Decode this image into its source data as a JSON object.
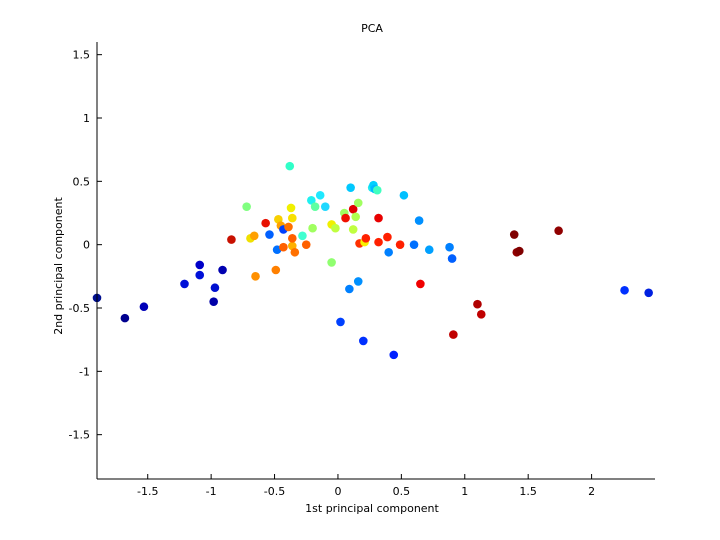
{
  "chart_data": {
    "type": "scatter",
    "title": "PCA",
    "xlabel": "1st principal component",
    "ylabel": "2nd principal component",
    "xlim": [
      -1.9,
      2.5
    ],
    "ylim": [
      -1.85,
      1.6
    ],
    "xticks": [
      -1.5,
      -1,
      -0.5,
      0,
      0.5,
      1,
      1.5,
      2
    ],
    "xtick_labels": [
      "-1.5",
      "-1",
      "-0.5",
      "0",
      "0.5",
      "1",
      "1.5",
      "2"
    ],
    "yticks": [
      1.5,
      1,
      0.5,
      0,
      -0.5,
      -1,
      -1.5
    ],
    "ytick_labels": [
      "1.5",
      "1",
      "0.5",
      "0",
      "-0.5",
      "-1",
      "-1.5"
    ],
    "grid": false,
    "colormap": "jet",
    "points": [
      {
        "x": -1.9,
        "y": -0.42,
        "c": "#000f8f"
      },
      {
        "x": -1.68,
        "y": -0.58,
        "c": "#00008f"
      },
      {
        "x": -1.53,
        "y": -0.49,
        "c": "#0000b8"
      },
      {
        "x": -1.21,
        "y": -0.31,
        "c": "#0010d8"
      },
      {
        "x": -1.09,
        "y": -0.16,
        "c": "#0000c8"
      },
      {
        "x": -1.09,
        "y": -0.24,
        "c": "#0010d8"
      },
      {
        "x": -0.97,
        "y": -0.34,
        "c": "#0010d0"
      },
      {
        "x": -0.98,
        "y": -0.45,
        "c": "#0000a8"
      },
      {
        "x": -0.91,
        "y": -0.2,
        "c": "#0000b0"
      },
      {
        "x": -0.84,
        "y": 0.04,
        "c": "#c81000"
      },
      {
        "x": -0.72,
        "y": 0.3,
        "c": "#80ff80"
      },
      {
        "x": -0.69,
        "y": 0.05,
        "c": "#f0e000"
      },
      {
        "x": -0.66,
        "y": 0.07,
        "c": "#ffa000"
      },
      {
        "x": -0.65,
        "y": -0.25,
        "c": "#ff9000"
      },
      {
        "x": -0.57,
        "y": 0.17,
        "c": "#e81000"
      },
      {
        "x": -0.54,
        "y": 0.08,
        "c": "#0060ff"
      },
      {
        "x": -0.49,
        "y": -0.2,
        "c": "#ff8000"
      },
      {
        "x": -0.48,
        "y": -0.04,
        "c": "#0070ff"
      },
      {
        "x": -0.47,
        "y": 0.2,
        "c": "#f8d000"
      },
      {
        "x": -0.45,
        "y": 0.15,
        "c": "#ffa000"
      },
      {
        "x": -0.43,
        "y": 0.12,
        "c": "#0040ff"
      },
      {
        "x": -0.43,
        "y": -0.02,
        "c": "#ff6000"
      },
      {
        "x": -0.39,
        "y": 0.14,
        "c": "#ff7000"
      },
      {
        "x": -0.38,
        "y": 0.62,
        "c": "#30ffc8"
      },
      {
        "x": -0.37,
        "y": 0.29,
        "c": "#f0f000"
      },
      {
        "x": -0.36,
        "y": 0.21,
        "c": "#f8e000"
      },
      {
        "x": -0.36,
        "y": -0.01,
        "c": "#ffb000"
      },
      {
        "x": -0.36,
        "y": 0.05,
        "c": "#ff6000"
      },
      {
        "x": -0.34,
        "y": -0.06,
        "c": "#ff7000"
      },
      {
        "x": -0.28,
        "y": 0.07,
        "c": "#40ffd0"
      },
      {
        "x": -0.25,
        "y": 0.0,
        "c": "#ff6000"
      },
      {
        "x": -0.21,
        "y": 0.35,
        "c": "#20f0f0"
      },
      {
        "x": -0.2,
        "y": 0.13,
        "c": "#a0ff60"
      },
      {
        "x": -0.18,
        "y": 0.3,
        "c": "#60ffa0"
      },
      {
        "x": -0.14,
        "y": 0.39,
        "c": "#20e8ff"
      },
      {
        "x": -0.1,
        "y": 0.3,
        "c": "#20d8ff"
      },
      {
        "x": -0.05,
        "y": 0.16,
        "c": "#f0f000"
      },
      {
        "x": -0.05,
        "y": -0.14,
        "c": "#90ff70"
      },
      {
        "x": -0.02,
        "y": 0.13,
        "c": "#c0ff40"
      },
      {
        "x": 0.02,
        "y": -0.61,
        "c": "#0040ff"
      },
      {
        "x": 0.05,
        "y": 0.25,
        "c": "#a0ff60"
      },
      {
        "x": 0.06,
        "y": 0.21,
        "c": "#f01000"
      },
      {
        "x": 0.09,
        "y": -0.35,
        "c": "#0080ff"
      },
      {
        "x": 0.1,
        "y": 0.45,
        "c": "#00c8ff"
      },
      {
        "x": 0.12,
        "y": 0.28,
        "c": "#e00000"
      },
      {
        "x": 0.12,
        "y": 0.12,
        "c": "#c0ff40"
      },
      {
        "x": 0.14,
        "y": 0.22,
        "c": "#b0ff50"
      },
      {
        "x": 0.16,
        "y": 0.33,
        "c": "#a0ff60"
      },
      {
        "x": 0.16,
        "y": -0.29,
        "c": "#0090ff"
      },
      {
        "x": 0.17,
        "y": 0.01,
        "c": "#ff3000"
      },
      {
        "x": 0.2,
        "y": -0.76,
        "c": "#0030ff"
      },
      {
        "x": 0.21,
        "y": 0.02,
        "c": "#f8f000"
      },
      {
        "x": 0.22,
        "y": 0.05,
        "c": "#ff2000"
      },
      {
        "x": 0.27,
        "y": 0.45,
        "c": "#20e8f0"
      },
      {
        "x": 0.28,
        "y": 0.47,
        "c": "#00d0ff"
      },
      {
        "x": 0.29,
        "y": 0.44,
        "c": "#00b8ff"
      },
      {
        "x": 0.31,
        "y": 0.43,
        "c": "#40ffc0"
      },
      {
        "x": 0.32,
        "y": 0.21,
        "c": "#e80000"
      },
      {
        "x": 0.32,
        "y": 0.02,
        "c": "#ff2000"
      },
      {
        "x": 0.39,
        "y": 0.06,
        "c": "#ff2000"
      },
      {
        "x": 0.4,
        "y": -0.06,
        "c": "#0080ff"
      },
      {
        "x": 0.44,
        "y": -0.87,
        "c": "#0020ff"
      },
      {
        "x": 0.49,
        "y": 0.0,
        "c": "#ff2000"
      },
      {
        "x": 0.52,
        "y": 0.39,
        "c": "#00c0ff"
      },
      {
        "x": 0.6,
        "y": 0.0,
        "c": "#0070ff"
      },
      {
        "x": 0.64,
        "y": 0.19,
        "c": "#0090ff"
      },
      {
        "x": 0.65,
        "y": -0.31,
        "c": "#f00000"
      },
      {
        "x": 0.72,
        "y": -0.04,
        "c": "#00a0ff"
      },
      {
        "x": 0.88,
        "y": -0.02,
        "c": "#0080ff"
      },
      {
        "x": 0.9,
        "y": -0.11,
        "c": "#0060ff"
      },
      {
        "x": 0.91,
        "y": -0.71,
        "c": "#c00000"
      },
      {
        "x": 1.1,
        "y": -0.47,
        "c": "#b00000"
      },
      {
        "x": 1.13,
        "y": -0.55,
        "c": "#c00000"
      },
      {
        "x": 1.39,
        "y": 0.08,
        "c": "#800000"
      },
      {
        "x": 1.41,
        "y": -0.06,
        "c": "#900000"
      },
      {
        "x": 1.43,
        "y": -0.05,
        "c": "#800000"
      },
      {
        "x": 1.74,
        "y": 0.11,
        "c": "#900000"
      },
      {
        "x": 2.26,
        "y": -0.36,
        "c": "#0030ff"
      },
      {
        "x": 2.45,
        "y": -0.38,
        "c": "#0020e0"
      }
    ]
  }
}
